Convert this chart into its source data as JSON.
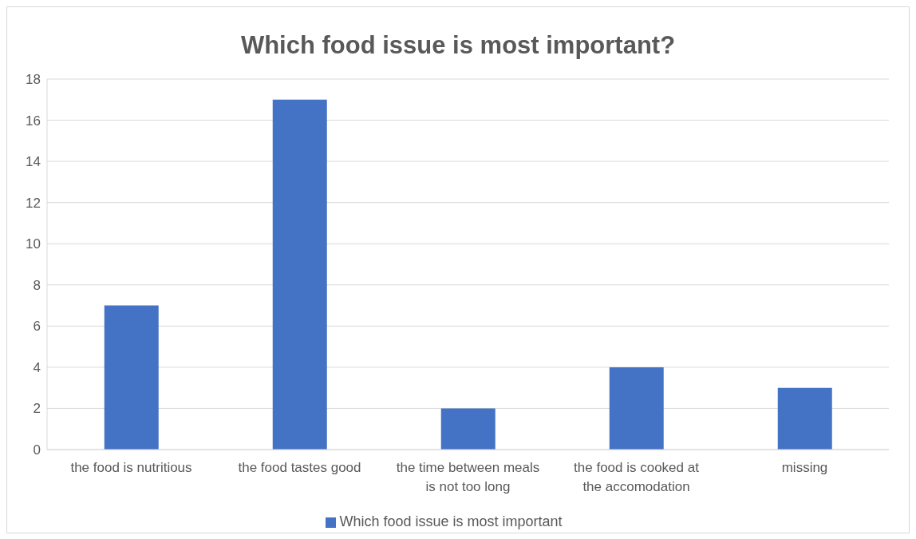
{
  "chart_data": {
    "type": "bar",
    "title": "Which food issue is most important?",
    "categories": [
      "the food is nutritious",
      "the food tastes good",
      "the time between meals is not too long",
      "the food is cooked at the accomodation",
      "missing"
    ],
    "series": [
      {
        "name": "Which food issue is most important",
        "color": "#4472c4",
        "values": [
          7,
          17,
          2,
          4,
          3
        ]
      }
    ],
    "ylim": [
      0,
      18
    ],
    "yticks": [
      0,
      2,
      4,
      6,
      8,
      10,
      12,
      14,
      16,
      18
    ],
    "grid": "y",
    "legend": "bottom"
  }
}
